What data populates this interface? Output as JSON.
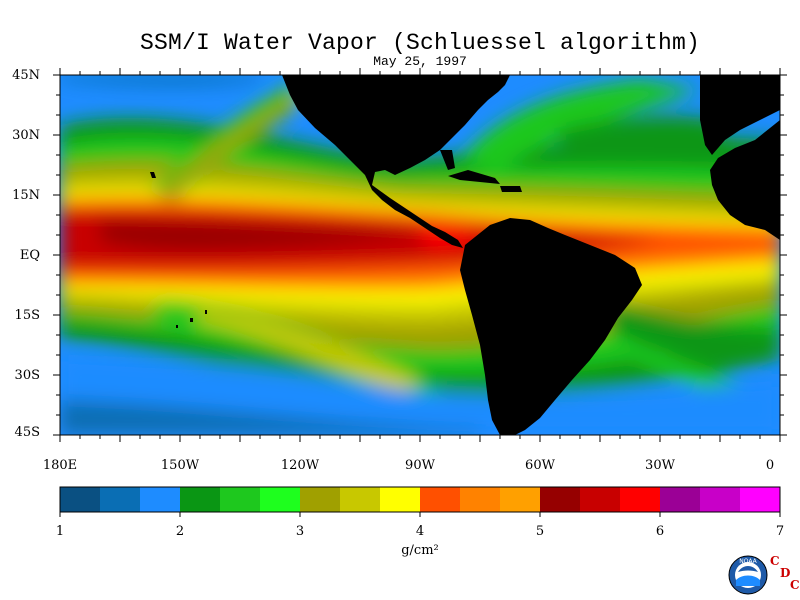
{
  "title": "SSM/I Water Vapor (Schluessel algorithm)",
  "date": "May 25, 1997",
  "latitude_labels": [
    "45N",
    "30N",
    "15N",
    "EQ",
    "15S",
    "30S",
    "45S"
  ],
  "longitude_labels": [
    "180E",
    "150W",
    "120W",
    "90W",
    "60W",
    "30W",
    "0"
  ],
  "colorbar": {
    "ticks": [
      "1",
      "2",
      "3",
      "4",
      "5",
      "6",
      "7"
    ],
    "unit": "g/cm²",
    "colors": [
      "#0a5082",
      "#0a6eb4",
      "#1e8cff",
      "#0a9614",
      "#1ec81e",
      "#1eff1e",
      "#a0a000",
      "#c8c800",
      "#ffff00",
      "#ff5000",
      "#ff8200",
      "#ffa000",
      "#960000",
      "#c80000",
      "#ff0000",
      "#9b0096",
      "#c800c8",
      "#ff00ff"
    ]
  },
  "map_colors": {
    "land": "#000000",
    "ocean_low": "#1e8cff",
    "ocean_mid": "#1ec81e",
    "ocean_high": "#c80000"
  },
  "logos": {
    "noaa": "NOAA",
    "cdc_letters": [
      "C",
      "D",
      "C"
    ]
  }
}
